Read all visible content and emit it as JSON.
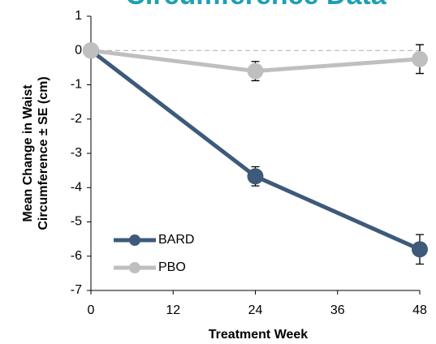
{
  "chart_data": {
    "type": "line",
    "title": "Circumference Data",
    "title_color": "#1ea0b4",
    "x_label": "Treatment Week",
    "y_label": [
      "Mean Change in Waist",
      "Circumference ± SE (cm)"
    ],
    "x": [
      0,
      24,
      48
    ],
    "xlim": [
      0,
      48
    ],
    "xticks": [
      0,
      12,
      24,
      36,
      48
    ],
    "ylim": [
      -7,
      1
    ],
    "yticks": [
      -7,
      -6,
      -5,
      -4,
      -3,
      -2,
      -1,
      0,
      1
    ],
    "zero_line": true,
    "legend": "lower left",
    "series": [
      {
        "name": "BARD",
        "color": "#3d5a7a",
        "values": [
          0,
          -3.67,
          -5.8
        ],
        "errors": [
          null,
          0.28,
          0.43
        ]
      },
      {
        "name": "PBO",
        "color": "#bfbfbf",
        "values": [
          0,
          -0.6,
          -0.25
        ],
        "errors": [
          null,
          0.28,
          0.42
        ]
      }
    ]
  }
}
